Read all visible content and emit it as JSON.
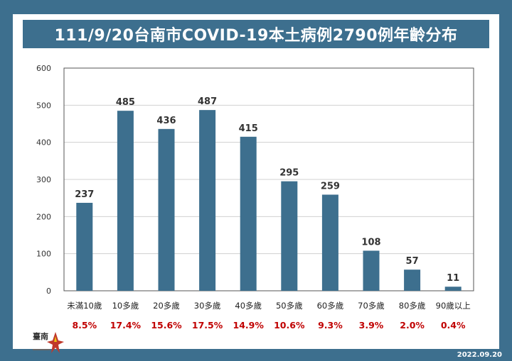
{
  "title": "111/9/20台南市COVID-19本土病例2790例年齡分布",
  "date_stamp": "2022.09.20",
  "colors": {
    "frame": "#3d6f8e",
    "bar": "#3d6f8e",
    "percent": "#c00000"
  },
  "logo": {
    "name": "tainan-city-logo",
    "text": "臺南"
  },
  "chart_data": {
    "type": "bar",
    "title": "111/9/20台南市COVID-19本土病例2790例年齡分布",
    "categories": [
      "未滿10歲",
      "10多歲",
      "20多歲",
      "30多歲",
      "40多歲",
      "50多歲",
      "60多歲",
      "70多歲",
      "80多歲",
      "90歲以上"
    ],
    "values": [
      237,
      485,
      436,
      487,
      415,
      295,
      259,
      108,
      57,
      11
    ],
    "percentages": [
      "8.5%",
      "17.4%",
      "15.6%",
      "17.5%",
      "14.9%",
      "10.6%",
      "9.3%",
      "3.9%",
      "2.0%",
      "0.4%"
    ],
    "ylim": [
      0,
      600
    ],
    "yticks": [
      0,
      100,
      200,
      300,
      400,
      500,
      600
    ],
    "grid": true,
    "xlabel": "",
    "ylabel": ""
  }
}
